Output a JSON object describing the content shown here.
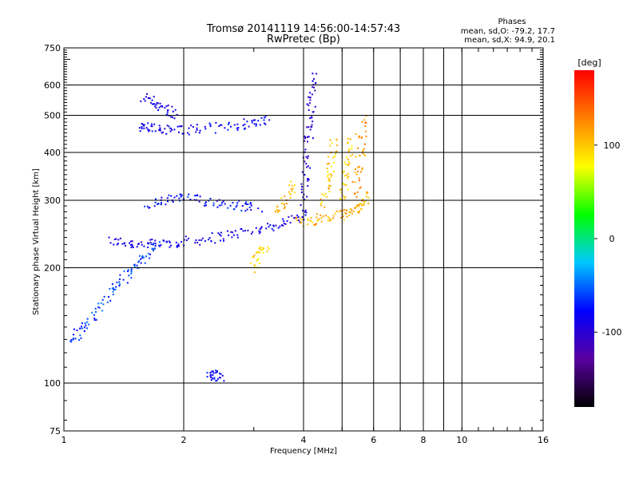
{
  "chart_data": {
    "type": "scatter",
    "title": "Tromsø 20141119 14:56:00-14:57:43",
    "subtitle": "RwPretec (Bp)",
    "xlabel": "Frequency [MHz]",
    "ylabel": "Stationary phase Virtual Height [km]",
    "x_scale": "log",
    "y_scale": "log",
    "xlim": [
      1,
      16
    ],
    "ylim": [
      75,
      750
    ],
    "x_ticks": [
      1,
      2,
      4,
      6,
      8,
      10,
      16
    ],
    "x_tick_labels": [
      "1",
      "2",
      "4",
      "6",
      "8",
      "10",
      "16"
    ],
    "y_ticks": [
      75,
      100,
      200,
      300,
      400,
      500,
      600,
      750
    ],
    "y_tick_labels": [
      "75",
      "100",
      "200",
      "300",
      "400",
      "500",
      "600",
      "750"
    ],
    "x_gridlines": [
      2,
      4,
      5,
      6,
      7,
      8,
      9,
      10
    ],
    "y_gridlines": [
      100,
      200,
      300,
      400,
      500,
      600
    ],
    "grid": true,
    "stats": {
      "heading": "Phases",
      "line_o": "mean, sd,O: -79.2, 17.7",
      "line_x": "mean, sd,X:  94.9, 20.1"
    },
    "colorbar": {
      "label": "[deg]",
      "min": -180,
      "max": 180,
      "ticks": [
        100,
        0,
        -100
      ],
      "tick_labels": [
        "100",
        "0",
        "-100"
      ],
      "colors": [
        "#000000",
        "#5a00a0",
        "#0000ff",
        "#00c8ff",
        "#00ff00",
        "#ffff00",
        "#ff8000",
        "#ff0000"
      ]
    },
    "series": [
      {
        "name": "O",
        "mean": -79.2,
        "sd": 17.7,
        "traces": [
          {
            "x": [
              1.3,
              1.45,
              1.6,
              1.8,
              2.0,
              2.3,
              2.6,
              3.0,
              3.4,
              3.8,
              4.1
            ],
            "y": [
              235,
              232,
              230,
              231,
              234,
              238,
              244,
              250,
              258,
              268,
              282
            ],
            "phase": -90
          },
          {
            "x": [
              1.55,
              1.65,
              1.8,
              2.0,
              2.3,
              2.7,
              3.0,
              3.3
            ],
            "y": [
              465,
              462,
              460,
              458,
              462,
              470,
              480,
              490
            ],
            "phase": -85
          },
          {
            "x": [
              1.05,
              1.1,
              1.2,
              1.3,
              1.4,
              1.5,
              1.6,
              1.75
            ],
            "y": [
              128,
              138,
              150,
              170,
              185,
              200,
              215,
              230
            ],
            "phase": -60
          },
          {
            "x": [
              1.6,
              1.8,
              2.0,
              2.2,
              2.5,
              2.8,
              3.1
            ],
            "y": [
              290,
              300,
              305,
              300,
              295,
              290,
              288
            ],
            "phase": -75
          },
          {
            "x": [
              4.0,
              4.05,
              4.1,
              4.15,
              4.2,
              4.25
            ],
            "y": [
              300,
              350,
              420,
              480,
              560,
              640
            ],
            "phase": -100
          },
          {
            "x": [
              1.6,
              1.7,
              1.8,
              1.9
            ],
            "y": [
              560,
              540,
              520,
              500
            ],
            "phase": -90
          },
          {
            "x": [
              2.3,
              2.4,
              2.5
            ],
            "y": [
              104,
              105,
              104
            ],
            "phase": -80
          }
        ]
      },
      {
        "name": "X",
        "mean": 94.9,
        "sd": 20.1,
        "traces": [
          {
            "x": [
              3.8,
              4.2,
              4.6,
              5.0,
              5.3,
              5.6,
              5.8
            ],
            "y": [
              262,
              266,
              270,
              275,
              282,
              292,
              310
            ],
            "phase": 110
          },
          {
            "x": [
              4.5,
              4.6,
              4.7,
              4.8
            ],
            "y": [
              290,
              330,
              380,
              430
            ],
            "phase": 100
          },
          {
            "x": [
              5.0,
              5.1,
              5.2,
              5.3
            ],
            "y": [
              300,
              340,
              390,
              440
            ],
            "phase": 95
          },
          {
            "x": [
              5.4,
              5.5,
              5.6,
              5.7
            ],
            "y": [
              310,
              360,
              420,
              500
            ],
            "phase": 120
          },
          {
            "x": [
              3.0,
              3.1,
              3.2
            ],
            "y": [
              200,
              215,
              230
            ],
            "phase": 90
          },
          {
            "x": [
              3.4,
              3.6,
              3.8
            ],
            "y": [
              280,
              300,
              330
            ],
            "phase": 105
          }
        ]
      }
    ]
  }
}
